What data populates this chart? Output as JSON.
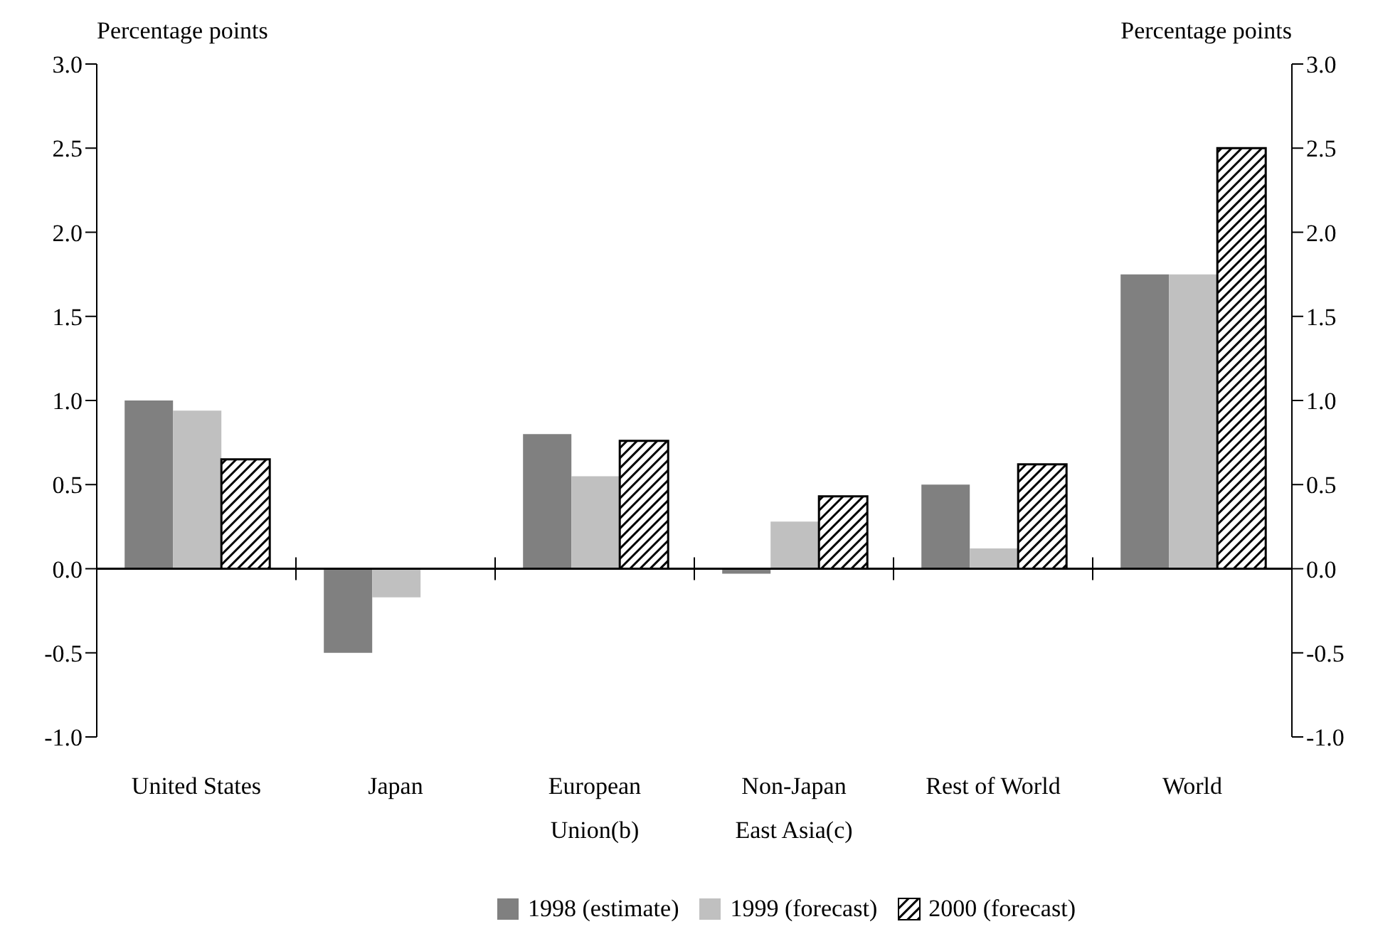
{
  "chart_data": {
    "type": "bar",
    "ylabel": "Percentage points",
    "y2label": "Percentage points",
    "categories": [
      "United States",
      "Japan",
      "European Union(b)",
      "Non-Japan East Asia(c)",
      "Rest of World",
      "World"
    ],
    "series": [
      {
        "name": "1998 (estimate)",
        "color": "#808080",
        "values": [
          1.0,
          -0.5,
          0.8,
          -0.03,
          0.5,
          1.75
        ]
      },
      {
        "name": "1999 (forecast)",
        "color": "#c0c0c0",
        "values": [
          0.94,
          -0.17,
          0.55,
          0.28,
          0.12,
          1.75
        ]
      },
      {
        "name": "2000 (forecast)",
        "color": "#000000",
        "values": [
          0.65,
          null,
          0.76,
          0.43,
          0.62,
          2.5
        ]
      }
    ],
    "ylim": [
      -1,
      3
    ],
    "yticks": [
      {
        "value": -1,
        "label": "-1.0"
      },
      {
        "value": -0.5,
        "label": "-0.5"
      },
      {
        "value": 0,
        "label": "0.0"
      },
      {
        "value": 0.5,
        "label": "0.5"
      },
      {
        "value": 1,
        "label": "1.0"
      },
      {
        "value": 1.5,
        "label": "1.5"
      },
      {
        "value": 2,
        "label": "2.0"
      },
      {
        "value": 2.5,
        "label": "2.5"
      },
      {
        "value": 3,
        "label": "3.0"
      }
    ],
    "y2lim": [
      -1,
      3
    ],
    "y2ticks": [
      {
        "value": -1,
        "label": "-1.0"
      },
      {
        "value": -0.5,
        "label": "-0.5"
      },
      {
        "value": 0,
        "label": "0.0"
      },
      {
        "value": 0.5,
        "label": "0.5"
      },
      {
        "value": 1,
        "label": "1.0"
      },
      {
        "value": 1.5,
        "label": "1.5"
      },
      {
        "value": 2,
        "label": "2.0"
      },
      {
        "value": 2.5,
        "label": "2.5"
      },
      {
        "value": 3,
        "label": "3.0"
      }
    ],
    "legend": "bottom"
  }
}
